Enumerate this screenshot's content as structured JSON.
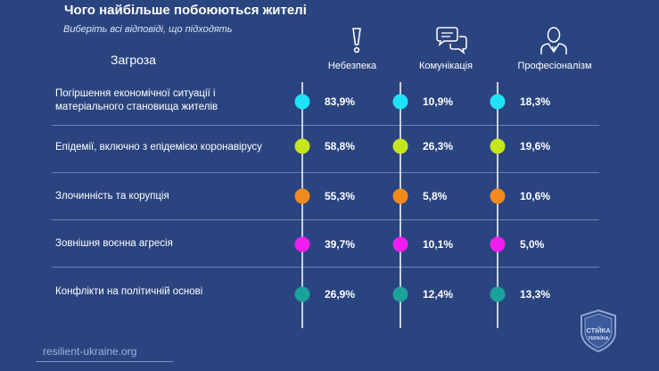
{
  "header": {
    "title": "Чого найбільше побоюються жителі",
    "subtitle": "Виберіть всі відповіді, що підходять",
    "threat_column_label": "Загроза"
  },
  "columns": [
    {
      "label": "Небезпека",
      "icon": "exclamation-icon"
    },
    {
      "label": "Комунікація",
      "icon": "chat-bubbles-icon"
    },
    {
      "label": "Професіоналізм",
      "icon": "person-icon"
    }
  ],
  "chart_data": {
    "type": "table",
    "categories": [
      "Погіршення економічної ситуації і матеріального становища жителів",
      "Епідемії, включно з епідемією коронавірусу",
      "Злочинність та корупція",
      "Зовнішня воєнна агресія",
      "Конфлікти на політичній основі"
    ],
    "series": [
      {
        "name": "Небезпека",
        "values": [
          83.9,
          58.8,
          55.3,
          39.7,
          26.9
        ],
        "labels": [
          "83,9%",
          "58,8%",
          "55,3%",
          "39,7%",
          "26,9%"
        ]
      },
      {
        "name": "Комунікація",
        "values": [
          10.9,
          26.3,
          5.8,
          10.1,
          12.4
        ],
        "labels": [
          "10,9%",
          "26,3%",
          "5,8%",
          "10,1%",
          "12,4%"
        ]
      },
      {
        "name": "Професіоналізм",
        "values": [
          18.3,
          19.6,
          10.6,
          5.0,
          13.3
        ],
        "labels": [
          "18,3%",
          "19,6%",
          "10,6%",
          "5,0%",
          "13,3%"
        ]
      }
    ],
    "row_colors": [
      "#1ee3f5",
      "#c5e61e",
      "#f28a1b",
      "#f21ef0",
      "#1aa39b"
    ]
  },
  "rows": [
    {
      "label_line1": "Погіршення економічної ситуації і",
      "label_line2": "матеріального становища жителів"
    },
    {
      "label_line1": "Епідемії, включно з епідемією коронавірусу",
      "label_line2": ""
    },
    {
      "label_line1": "Злочинність та корупція",
      "label_line2": ""
    },
    {
      "label_line1": "Зовнішня воєнна агресія",
      "label_line2": ""
    },
    {
      "label_line1": "Конфлікти на політичній основі",
      "label_line2": ""
    }
  ],
  "footer": {
    "link": "resilient-ukraine.org",
    "logo_text_top": "СТІЙКА",
    "logo_text_bottom": "УКРАЇНА"
  },
  "colors": {
    "background": "#2a4480",
    "axis_line": "#ffffff",
    "divider": "#6b82b8"
  }
}
